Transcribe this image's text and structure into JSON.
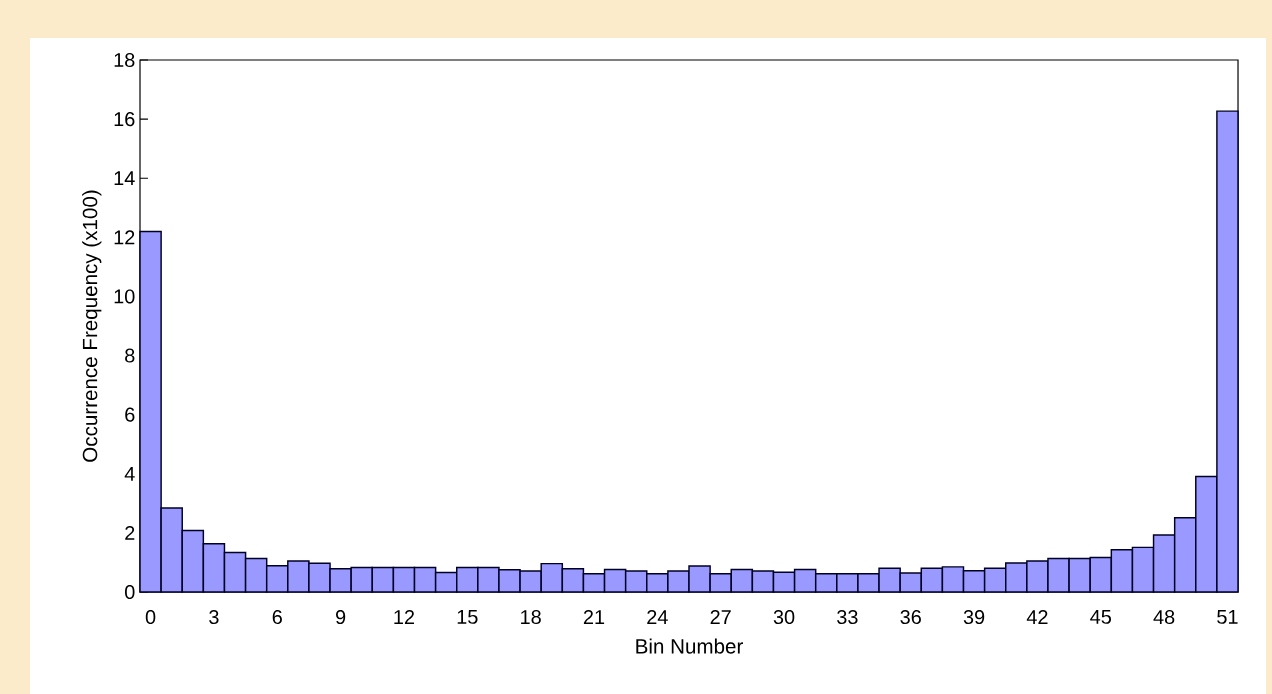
{
  "chart_data": {
    "type": "bar",
    "xlabel": "Bin Number",
    "ylabel": "Occurrence Frequency (x100)",
    "categories": [
      "0",
      null,
      null,
      "3",
      null,
      null,
      "6",
      null,
      null,
      "9",
      null,
      null,
      "12",
      null,
      null,
      "15",
      null,
      null,
      "18",
      null,
      null,
      "21",
      null,
      null,
      "24",
      null,
      null,
      "27",
      null,
      null,
      "30",
      null,
      null,
      "33",
      null,
      null,
      "36",
      null,
      null,
      "39",
      null,
      null,
      "42",
      null,
      null,
      "45",
      null,
      null,
      "48",
      null,
      null,
      "51"
    ],
    "values": [
      12.2,
      2.84,
      2.08,
      1.63,
      1.34,
      1.13,
      0.89,
      1.05,
      0.97,
      0.79,
      0.83,
      0.83,
      0.83,
      0.83,
      0.66,
      0.83,
      0.83,
      0.75,
      0.71,
      0.96,
      0.79,
      0.62,
      0.76,
      0.71,
      0.62,
      0.71,
      0.88,
      0.62,
      0.76,
      0.71,
      0.67,
      0.76,
      0.62,
      0.62,
      0.62,
      0.8,
      0.64,
      0.8,
      0.85,
      0.72,
      0.8,
      0.98,
      1.05,
      1.13,
      1.13,
      1.17,
      1.43,
      1.51,
      1.93,
      2.51,
      3.91,
      16.27
    ],
    "color": "#9999ff",
    "ylim": [
      0,
      18
    ],
    "yticks": [
      0,
      2,
      4,
      6,
      8,
      10,
      12,
      14,
      16,
      18
    ]
  }
}
